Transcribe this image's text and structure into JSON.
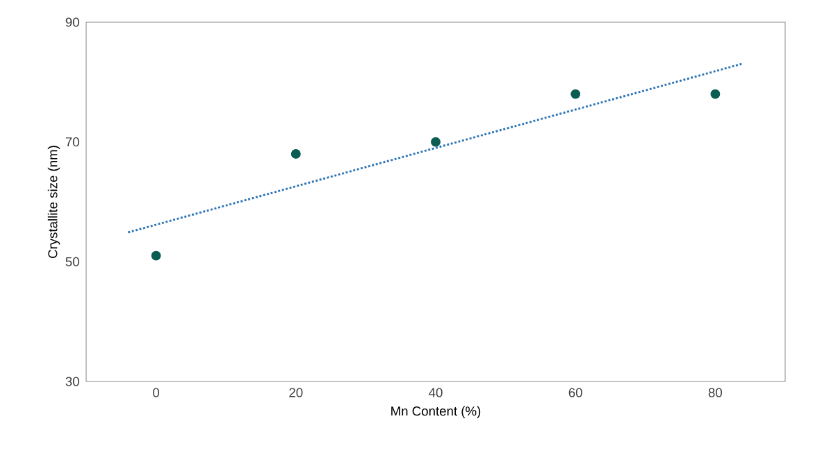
{
  "chart_data": {
    "type": "scatter",
    "xlabel": "Mn Content (%)",
    "ylabel": "Crystallite size (nm)",
    "xlim": [
      -10,
      90
    ],
    "xticks": [
      0,
      20,
      40,
      60,
      80
    ],
    "ylim": [
      30,
      90
    ],
    "yticks": [
      30,
      50,
      70,
      90
    ],
    "grid": false,
    "marker": "circle",
    "series": [
      {
        "color": "#0b5d52",
        "x": [
          0,
          20,
          40,
          60,
          80
        ],
        "values": [
          51,
          68,
          70,
          78,
          78
        ]
      },
      {
        "type": "line",
        "color": "#2e75b6",
        "line_style": "dotted",
        "marker": "none",
        "x": [
          -4,
          84
        ],
        "values": [
          54.9,
          83.1
        ]
      }
    ]
  }
}
